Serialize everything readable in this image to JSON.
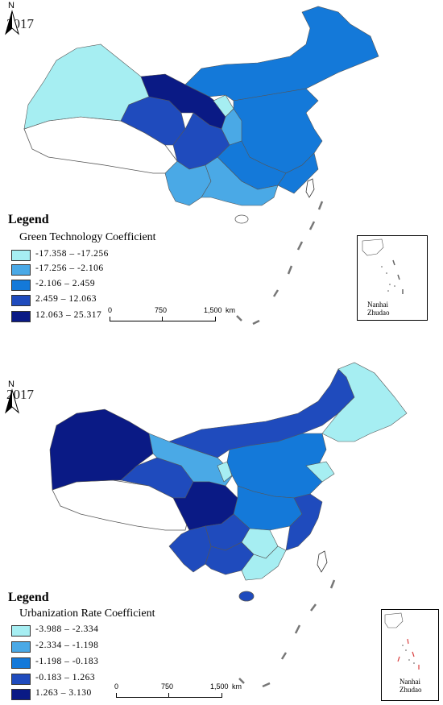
{
  "maps": [
    {
      "year": "2017",
      "legend_title": "Legend",
      "legend_subtitle": "Green Technology Coefficient",
      "classes": [
        {
          "range": "-17.358 – -17.256",
          "color": "#a6eef2"
        },
        {
          "range": "-17.256 – -2.106",
          "color": "#4aa9e6"
        },
        {
          "range": "-2.106 – 2.459",
          "color": "#1479d9"
        },
        {
          "range": "2.459 – 12.063",
          "color": "#1f4bbd"
        },
        {
          "range": "12.063 – 25.317",
          "color": "#0a1a85"
        }
      ],
      "scale": {
        "zero": "0",
        "mid": "750",
        "max": "1,500",
        "unit": "km"
      },
      "inset": {
        "line1": "Nanhai",
        "line2": "Zhudao"
      }
    },
    {
      "year": "2017",
      "legend_title": "Legend",
      "legend_subtitle": "Urbanization Rate Coefficient",
      "classes": [
        {
          "range": "-3.988 – -2.334",
          "color": "#a6eef2"
        },
        {
          "range": "-2.334 – -1.198",
          "color": "#4aa9e6"
        },
        {
          "range": "-1.198 – -0.183",
          "color": "#1479d9"
        },
        {
          "range": "-0.183 – 1.263",
          "color": "#1f4bbd"
        },
        {
          "range": "1.263 – 3.130",
          "color": "#0a1a85"
        }
      ],
      "scale": {
        "zero": "0",
        "mid": "750",
        "max": "1,500",
        "unit": "km"
      },
      "inset": {
        "line1": "Nanhai",
        "line2": "Zhudao"
      }
    }
  ],
  "north_label": "N",
  "colors": {
    "class1": "#a6eef2",
    "class2": "#4aa9e6",
    "class3": "#1479d9",
    "class4": "#1f4bbd",
    "class5": "#0a1a85",
    "nodata": "#ffffff",
    "border": "#6a6a6a"
  }
}
